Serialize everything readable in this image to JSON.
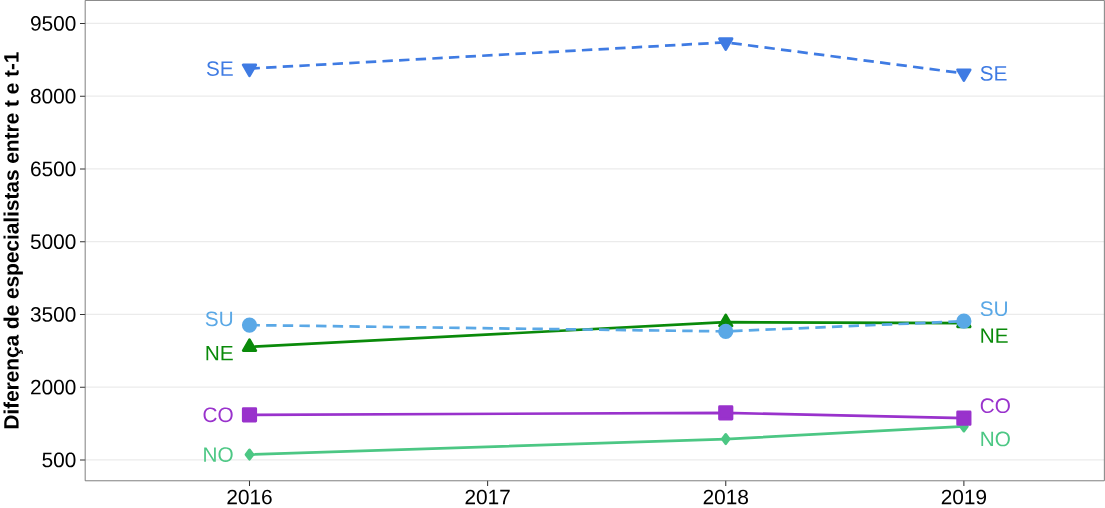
{
  "chart_data": {
    "type": "line",
    "ylabel": "Diferença de especialistas entre t e t-1",
    "x": [
      2016,
      2018,
      2019
    ],
    "xlim": [
      2015.31,
      2019.59
    ],
    "xticks": [
      2016,
      2017,
      2018,
      2019
    ],
    "ylim": [
      70,
      9975
    ],
    "yticks": [
      500,
      2000,
      3500,
      5000,
      6500,
      8000,
      9500
    ],
    "grid": "y",
    "series": [
      {
        "name": "SE",
        "color": "#3f7be3",
        "values": [
          8570,
          9110,
          8470
        ],
        "marker": "triangle",
        "line_style": "dashed"
      },
      {
        "name": "SU",
        "color": "#5aa8e6",
        "values": [
          3280,
          3150,
          3360
        ],
        "marker": "circle",
        "line_style": "dashed"
      },
      {
        "name": "NE",
        "color": "#0a8a0a",
        "values": [
          2830,
          3340,
          3320
        ],
        "marker": "triangle",
        "line_style": "solid"
      },
      {
        "name": "CO",
        "color": "#9932cc",
        "values": [
          1430,
          1470,
          1360
        ],
        "marker": "square",
        "line_style": "solid"
      },
      {
        "name": "NO",
        "color": "#4cc784",
        "values": [
          610,
          930,
          1190
        ],
        "marker": "diamond",
        "line_style": "solid"
      }
    ]
  }
}
